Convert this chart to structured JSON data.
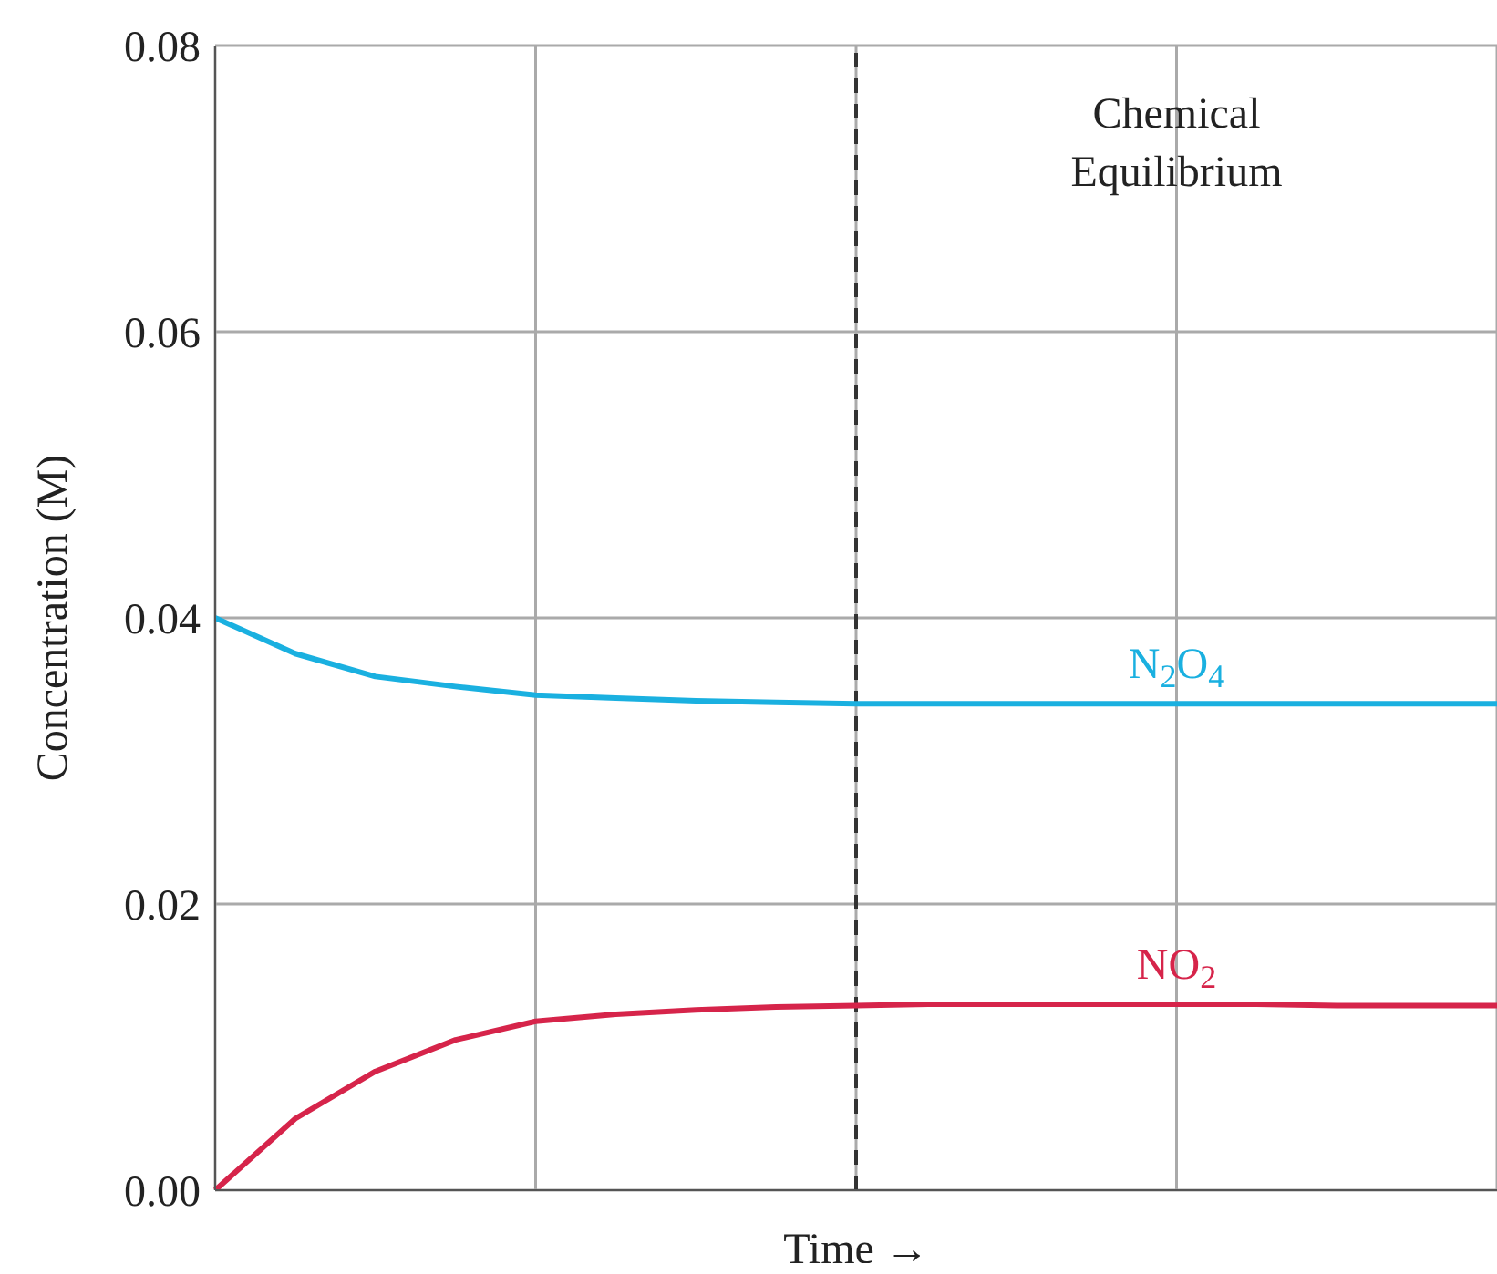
{
  "chart_data": {
    "type": "line",
    "xlabel": "Time →",
    "ylabel": "Concentration (M)",
    "categories": [
      null,
      null,
      null,
      null,
      null,
      null,
      null,
      null,
      null,
      null,
      null,
      null,
      null,
      null,
      null,
      null,
      null
    ],
    "series": [
      {
        "name": "N$_{2}$O$_{4}$",
        "color": "#1ab0e0",
        "values": [
          0.04,
          0.0375,
          0.0359,
          0.0352,
          0.0346,
          0.0344,
          0.0342,
          0.0341,
          0.034,
          0.034,
          0.034,
          0.034,
          0.034,
          0.034,
          0.034,
          0.034,
          0.034
        ]
      },
      {
        "name": "NO$_{2}$",
        "color": "#d6244a",
        "values": [
          0,
          0.005,
          0.0083,
          0.0105,
          0.0118,
          0.0123,
          0.0126,
          0.0128,
          0.0129,
          0.013,
          0.013,
          0.013,
          0.013,
          0.013,
          0.0129,
          0.0129,
          0.0129
        ]
      }
    ],
    "ylim": [
      0,
      0.08
    ],
    "yticks": [
      {
        "value": 0,
        "label": "0.00"
      },
      {
        "value": 0.02,
        "label": "0.02"
      },
      {
        "value": 0.04,
        "label": "0.04"
      },
      {
        "value": 0.06,
        "label": "0.06"
      },
      {
        "value": 0.08,
        "label": "0.08"
      }
    ],
    "tick_labels": "y",
    "grid": true,
    "legend": false,
    "marker": "none",
    "line_style": "solid",
    "ref_lines": [
      {
        "axis": "x",
        "label": "Chemical Equilibrium",
        "color": "#333333",
        "line_style": "dashed"
      }
    ]
  }
}
